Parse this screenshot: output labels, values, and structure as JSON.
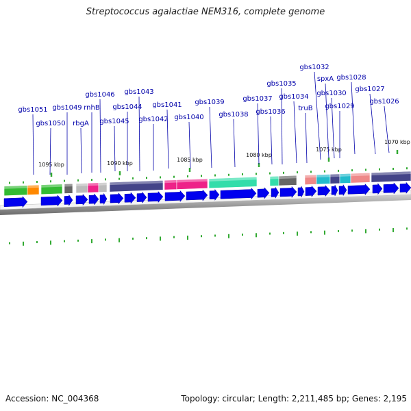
{
  "title": "Streptococcus agalactiae NEM316, complete genome",
  "footer": {
    "accession": "Accession: NC_004368",
    "summary": "Topology: circular; Length: 2,211,485 bp; Genes: 2,195"
  },
  "genes": [
    "gbs1051",
    "gbs1050",
    "gbs1049",
    "rbgA",
    "rnhB",
    "gbs1046",
    "gbs1045",
    "gbs1044",
    "gbs1043",
    "gbs1042",
    "gbs1041",
    "gbs1040",
    "gbs1039",
    "gbs1038",
    "gbs1037",
    "gbs1036",
    "gbs1035",
    "gbs1034",
    "truB",
    "gbs1032",
    "spxA",
    "gbs1030",
    "gbs1029",
    "gbs1028",
    "gbs1027",
    "gbs1026"
  ],
  "kbp_ticks": [
    "1095 kbp",
    "1090 kbp",
    "1085 kbp",
    "1080 kbp",
    "1075 kbp",
    "1070 kbp"
  ],
  "colors": {
    "cds": "#0000ee",
    "gene_label": "#0000aa",
    "tick": "#33aa33",
    "backbone": "#888888",
    "cog_green": "#33bb33",
    "cog_navy": "#444488",
    "cog_pink": "#ee2288",
    "cog_teal": "#33ddaa",
    "cog_salmon": "#ee8888",
    "cog_orange": "#ff8800",
    "cog_gray": "#666666",
    "cog_lightgray": "#bbbbbb",
    "cog_cyan": "#22bbcc"
  }
}
